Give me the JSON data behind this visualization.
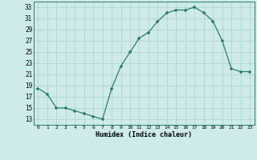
{
  "x": [
    0,
    1,
    2,
    3,
    4,
    5,
    6,
    7,
    8,
    9,
    10,
    11,
    12,
    13,
    14,
    15,
    16,
    17,
    18,
    19,
    20,
    21,
    22,
    23
  ],
  "y": [
    18.5,
    17.5,
    15.0,
    15.0,
    14.5,
    14.0,
    13.5,
    13.0,
    18.5,
    22.5,
    25.0,
    27.5,
    28.5,
    30.5,
    32.0,
    32.5,
    32.5,
    33.0,
    32.0,
    30.5,
    27.0,
    22.0,
    21.5,
    21.5
  ],
  "line_color": "#2d7d6e",
  "marker_color": "#2d7d6e",
  "bg_color": "#ceeaea",
  "grid_color": "#aacfcf",
  "xlabel": "Humidex (Indice chaleur)",
  "ylabel_ticks": [
    13,
    15,
    17,
    19,
    21,
    23,
    25,
    27,
    29,
    31,
    33
  ],
  "xtick_labels": [
    "0",
    "1",
    "2",
    "3",
    "4",
    "5",
    "6",
    "7",
    "8",
    "9",
    "10",
    "11",
    "12",
    "13",
    "14",
    "15",
    "16",
    "17",
    "18",
    "19",
    "20",
    "21",
    "22",
    "23"
  ],
  "xlim": [
    -0.5,
    23.5
  ],
  "ylim": [
    12,
    34
  ],
  "figsize": [
    3.2,
    2.0
  ],
  "dpi": 100
}
